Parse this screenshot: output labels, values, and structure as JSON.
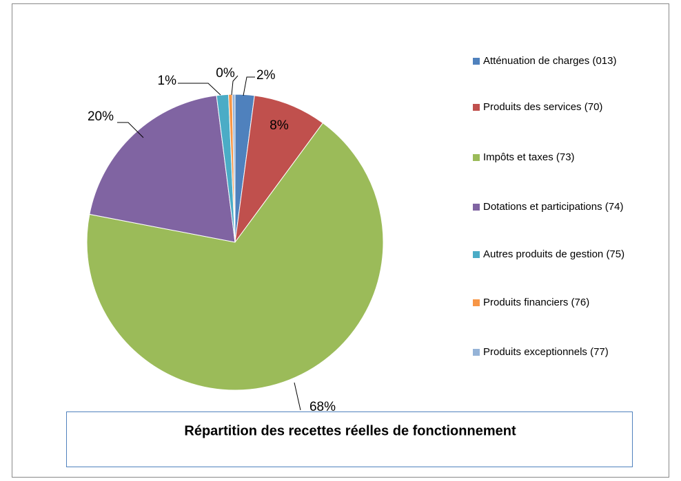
{
  "chart_data": {
    "type": "pie",
    "title": "Répartition des recettes réelles de fonctionnement",
    "categories": [
      "Atténuation de charges (013)",
      "Produits des services (70)",
      "Impôts et taxes (73)",
      "Dotations et participations (74)",
      "Autres produits de gestion (75)",
      "Produits financiers (76)",
      "Produits exceptionnels (77)"
    ],
    "values": [
      2.1,
      8,
      68,
      20,
      1.3,
      0.4,
      0.3
    ],
    "value_labels": [
      "2%",
      "8%",
      "68%",
      "20%",
      "1%",
      "0%",
      null
    ],
    "colors": [
      "#4F81BD",
      "#C0504D",
      "#9BBB59",
      "#8064A2",
      "#4BACC6",
      "#F79646",
      "#95B3D7"
    ],
    "legend": "right"
  }
}
